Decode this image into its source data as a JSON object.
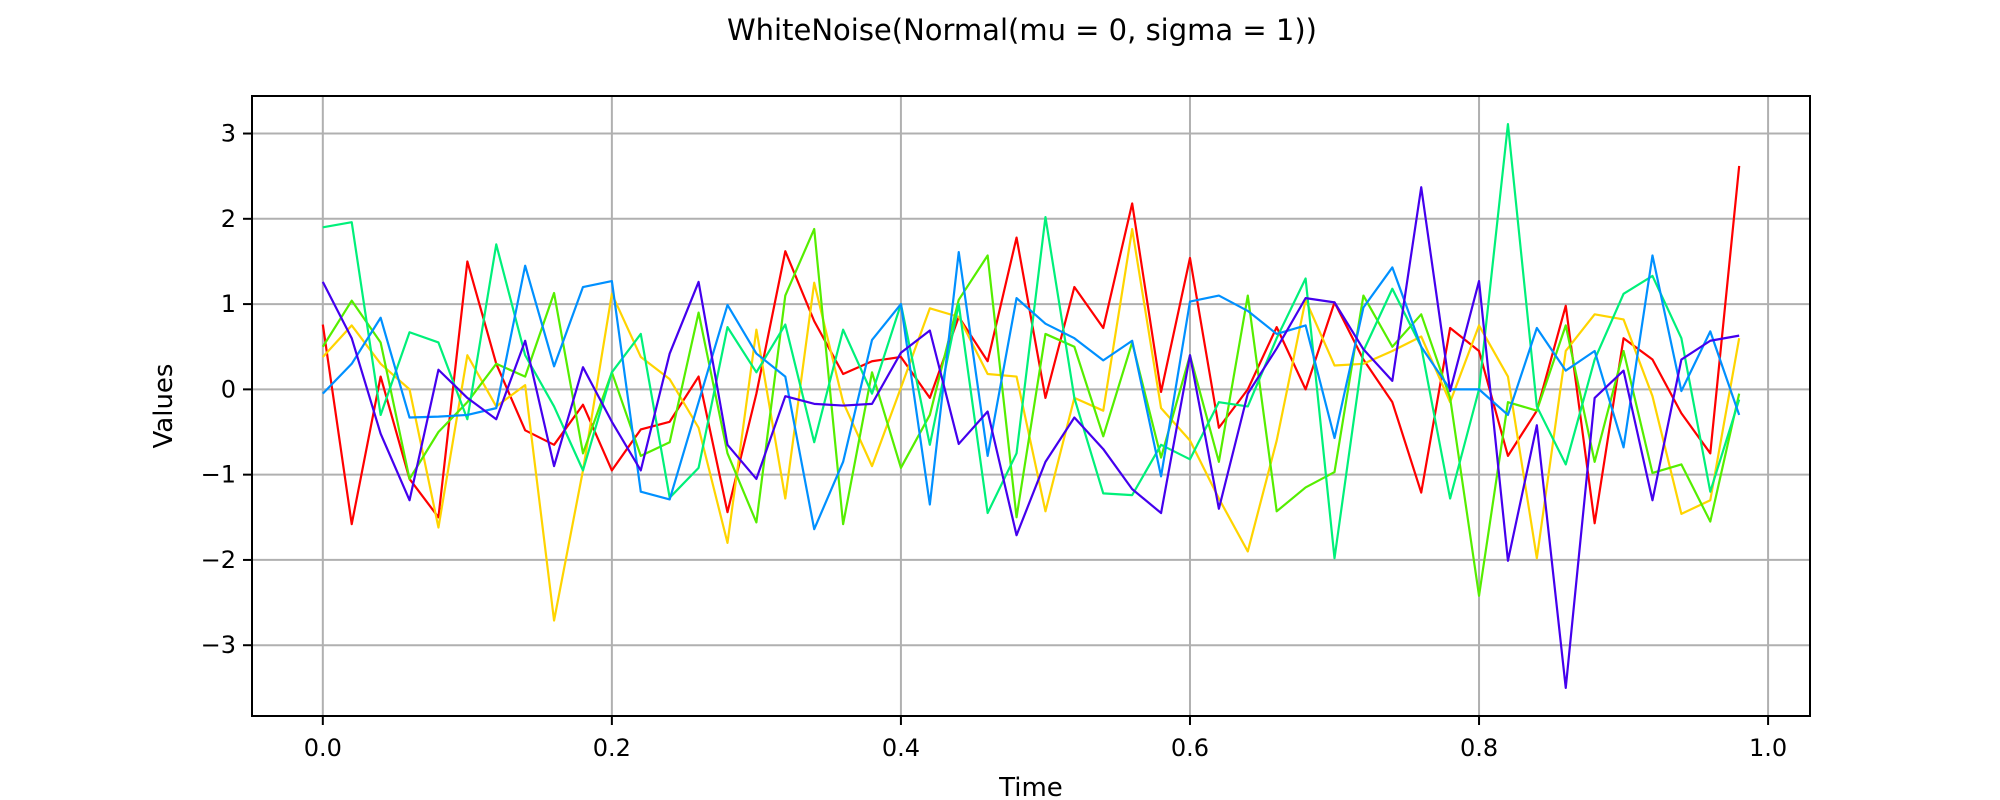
{
  "chart_data": {
    "type": "line",
    "title": "WhiteNoise(Normal(mu = 0, sigma = 1))",
    "xlabel": "Time",
    "ylabel": "Values",
    "xlim": [
      -0.049,
      1.029
    ],
    "ylim": [
      -3.83,
      3.44
    ],
    "xticks": [
      0.0,
      0.2,
      0.4,
      0.6,
      0.8,
      1.0
    ],
    "xtick_labels": [
      "0.0",
      "0.2",
      "0.4",
      "0.6",
      "0.8",
      "1.0"
    ],
    "yticks": [
      3,
      2,
      1,
      0,
      -1,
      -2,
      -3
    ],
    "ytick_labels": [
      "3",
      "2",
      "1",
      "0",
      "−1",
      "−2",
      "−3"
    ],
    "grid": true,
    "x": [
      0.0,
      0.02,
      0.04,
      0.06,
      0.08,
      0.1,
      0.12,
      0.14,
      0.16,
      0.18,
      0.2,
      0.22,
      0.24,
      0.26,
      0.28,
      0.3,
      0.32,
      0.34,
      0.36,
      0.38,
      0.4,
      0.42,
      0.44,
      0.46,
      0.48,
      0.5,
      0.52,
      0.54,
      0.56,
      0.58,
      0.6,
      0.62,
      0.64,
      0.66,
      0.68,
      0.7,
      0.72,
      0.74,
      0.76,
      0.78,
      0.8,
      0.82,
      0.84,
      0.86,
      0.88,
      0.9,
      0.92,
      0.94,
      0.96,
      0.98
    ],
    "series": [
      {
        "color": "#ff0000",
        "values": [
          0.76,
          -1.58,
          0.15,
          -1.05,
          -1.5,
          1.5,
          0.3,
          -0.48,
          -0.65,
          -0.18,
          -0.95,
          -0.47,
          -0.38,
          0.15,
          -1.44,
          -0.05,
          1.62,
          0.8,
          0.18,
          0.33,
          0.38,
          -0.1,
          0.85,
          0.33,
          1.78,
          -0.1,
          1.2,
          0.72,
          2.18,
          -0.03,
          1.54,
          -0.45,
          0.0,
          0.73,
          0.0,
          1.02,
          0.35,
          -0.15,
          -1.21,
          0.72,
          0.45,
          -0.78,
          -0.25,
          0.98,
          -1.57,
          0.6,
          0.35,
          -0.28,
          -0.75,
          2.62
        ]
      },
      {
        "color": "#ffd400",
        "values": [
          0.38,
          0.75,
          0.3,
          0.0,
          -1.62,
          0.4,
          -0.2,
          0.05,
          -2.71,
          -0.95,
          1.12,
          0.38,
          0.12,
          -0.45,
          -1.8,
          0.7,
          -1.28,
          1.25,
          -0.15,
          -0.9,
          0.02,
          0.95,
          0.85,
          0.18,
          0.15,
          -1.43,
          -0.1,
          -0.25,
          1.88,
          -0.22,
          -0.6,
          -1.28,
          -1.9,
          -0.6,
          1.05,
          0.28,
          0.3,
          0.45,
          0.62,
          -0.15,
          0.75,
          0.15,
          -1.98,
          0.45,
          0.88,
          0.82,
          -0.08,
          -1.46,
          -1.3,
          0.6
        ]
      },
      {
        "color": "#55ee00",
        "values": [
          0.5,
          1.04,
          0.55,
          -1.05,
          -0.5,
          -0.15,
          0.3,
          0.15,
          1.13,
          -0.75,
          0.2,
          -0.78,
          -0.62,
          0.9,
          -0.75,
          -1.56,
          1.1,
          1.88,
          -1.58,
          0.2,
          -0.92,
          -0.3,
          1.05,
          1.57,
          -1.5,
          0.65,
          0.5,
          -0.55,
          0.55,
          -0.8,
          0.4,
          -0.85,
          1.1,
          -1.43,
          -1.15,
          -0.97,
          1.1,
          0.5,
          0.88,
          -0.1,
          -2.42,
          -0.15,
          -0.25,
          0.75,
          -0.85,
          0.45,
          -0.98,
          -0.88,
          -1.55,
          -0.05
        ]
      },
      {
        "color": "#00f07a",
        "values": [
          1.9,
          1.96,
          -0.3,
          0.67,
          0.55,
          -0.35,
          1.7,
          0.4,
          -0.2,
          -0.95,
          0.2,
          0.65,
          -1.27,
          -0.92,
          0.73,
          0.2,
          0.76,
          -0.62,
          0.7,
          -0.05,
          1.0,
          -0.65,
          1.0,
          -1.45,
          -0.75,
          2.02,
          -0.1,
          -1.22,
          -1.24,
          -0.65,
          -0.82,
          -0.15,
          -0.2,
          0.6,
          1.3,
          -1.98,
          0.45,
          1.18,
          0.5,
          -1.28,
          0.0,
          3.11,
          -0.2,
          -0.88,
          0.35,
          1.12,
          1.33,
          0.6,
          -1.2,
          -0.12
        ]
      },
      {
        "color": "#0090ff",
        "values": [
          -0.05,
          0.3,
          0.84,
          -0.33,
          -0.32,
          -0.3,
          -0.22,
          1.45,
          0.27,
          1.2,
          1.27,
          -1.2,
          -1.29,
          -0.15,
          0.99,
          0.42,
          0.15,
          -1.64,
          -0.85,
          0.58,
          1.0,
          -1.35,
          1.61,
          -0.78,
          1.07,
          0.77,
          0.6,
          0.34,
          0.57,
          -1.02,
          1.03,
          1.1,
          0.92,
          0.65,
          0.75,
          -0.57,
          0.96,
          1.43,
          0.5,
          0.0,
          0.0,
          -0.3,
          0.72,
          0.22,
          0.45,
          -0.68,
          1.57,
          -0.02,
          0.68,
          -0.3
        ]
      },
      {
        "color": "#4400ee",
        "values": [
          1.26,
          0.6,
          -0.52,
          -1.3,
          0.23,
          -0.1,
          -0.35,
          0.57,
          -0.9,
          0.26,
          -0.38,
          -0.95,
          0.42,
          1.26,
          -0.65,
          -1.05,
          -0.08,
          -0.17,
          -0.19,
          -0.17,
          0.43,
          0.69,
          -0.64,
          -0.26,
          -1.71,
          -0.85,
          -0.33,
          -0.7,
          -1.17,
          -1.45,
          0.4,
          -1.4,
          -0.05,
          0.48,
          1.07,
          1.02,
          0.47,
          0.1,
          2.37,
          -0.02,
          1.27,
          -2.01,
          -0.42,
          -3.5,
          -0.1,
          0.22,
          -1.3,
          0.35,
          0.57,
          0.63
        ]
      }
    ]
  }
}
